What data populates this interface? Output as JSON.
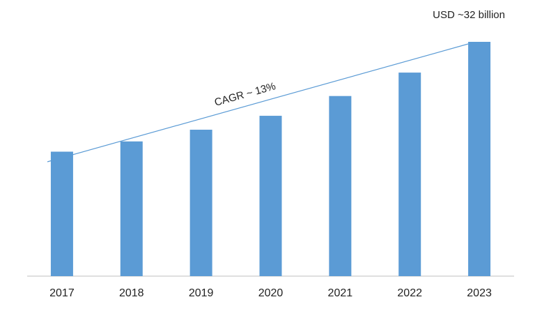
{
  "chart_data": {
    "type": "bar",
    "categories": [
      "2017",
      "2018",
      "2019",
      "2020",
      "2021",
      "2022",
      "2023"
    ],
    "values": [
      17.0,
      18.4,
      20.0,
      21.9,
      24.6,
      27.8,
      32
    ],
    "value_labels": [
      null,
      null,
      null,
      null,
      null,
      null,
      "USD ~32 billion"
    ],
    "color": "#5b9bd5",
    "annotations": [
      "CAGR ~ 13%"
    ]
  }
}
